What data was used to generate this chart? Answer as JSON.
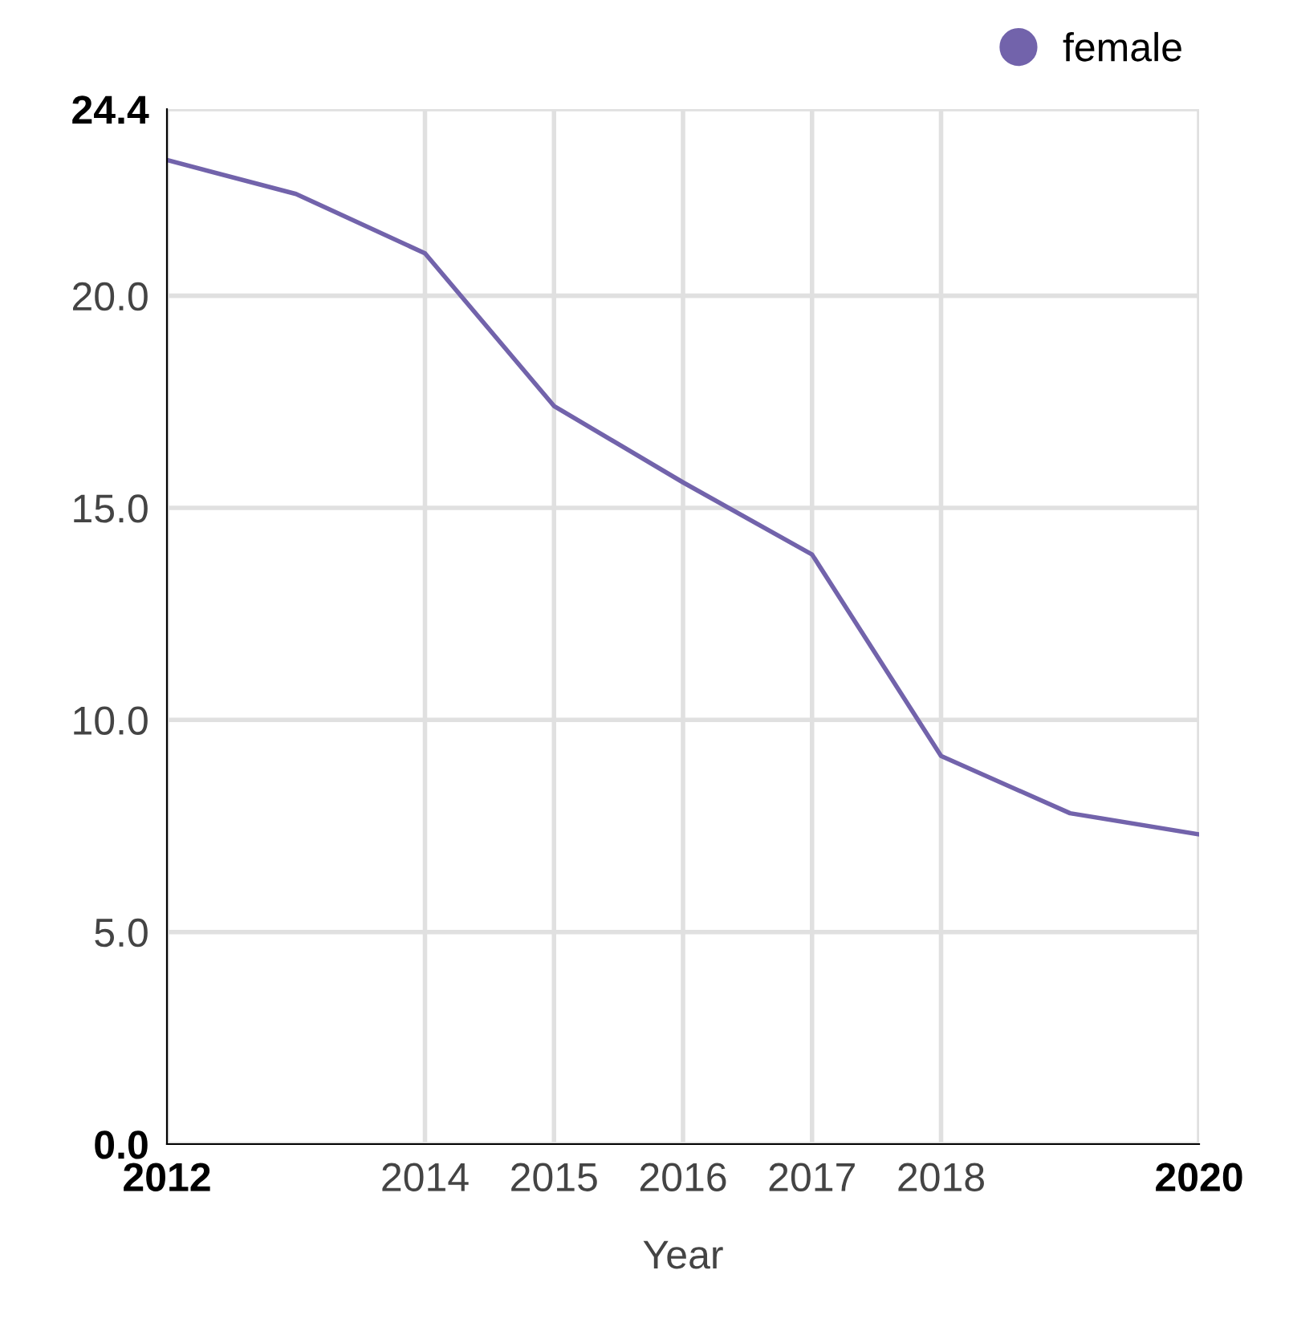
{
  "chart_data": {
    "type": "line",
    "xlabel": "Year",
    "x": [
      2012,
      2013,
      2014,
      2015,
      2016,
      2017,
      2018,
      2019,
      2020
    ],
    "series": [
      {
        "name": "female",
        "color": "#7263ab",
        "values": [
          23.2,
          22.4,
          21.0,
          17.4,
          15.6,
          13.9,
          9.15,
          7.8,
          7.3
        ]
      }
    ],
    "xlim": [
      2012,
      2020
    ],
    "xticks": [
      2012,
      2014,
      2015,
      2016,
      2017,
      2018,
      2020
    ],
    "ylim": [
      0,
      24.4
    ],
    "yticks": [
      {
        "value": 0,
        "label": "0.0"
      },
      {
        "value": 5,
        "label": "5.0"
      },
      {
        "value": 10,
        "label": "10.0"
      },
      {
        "value": 15,
        "label": "15.0"
      },
      {
        "value": 20,
        "label": "20.0"
      },
      {
        "value": 24.4,
        "label": "24.4"
      }
    ],
    "grid": true,
    "legend": "top right"
  }
}
